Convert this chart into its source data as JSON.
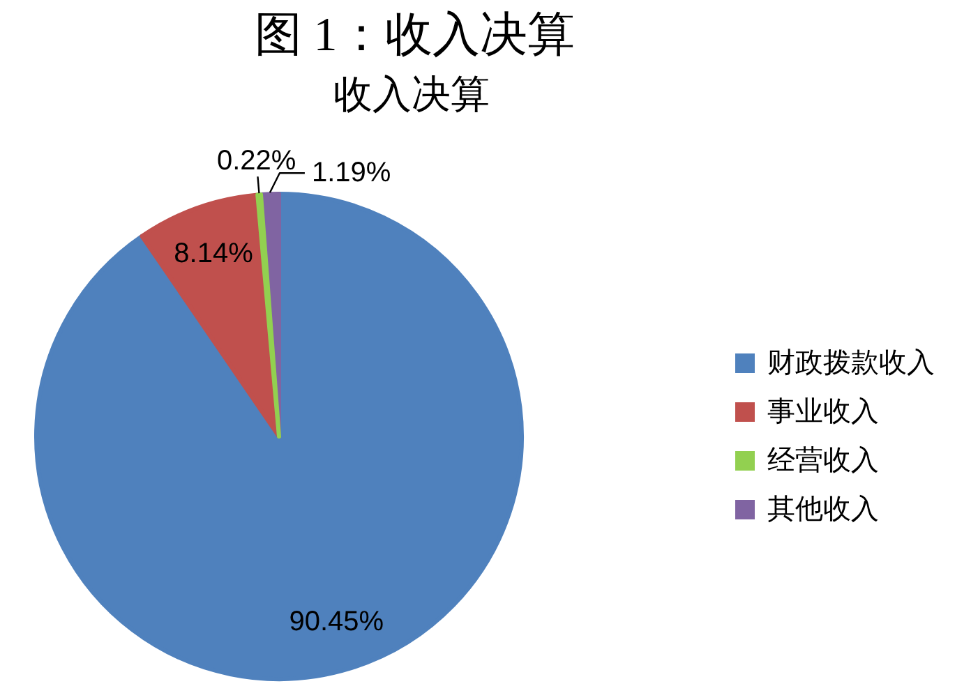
{
  "chart_data": {
    "type": "pie",
    "title": "图 1：收入决算",
    "subtitle": "收入决算",
    "categories": [
      "财政拨款收入",
      "事业收入",
      "经营收入",
      "其他收入"
    ],
    "values": [
      90.45,
      8.14,
      0.22,
      1.19
    ],
    "colors": [
      "#4f81bd",
      "#c0504d",
      "#92d050",
      "#8064a2"
    ],
    "value_labels": [
      "90.45%",
      "8.14%",
      "0.22%",
      "1.19%"
    ],
    "legend": "right"
  }
}
